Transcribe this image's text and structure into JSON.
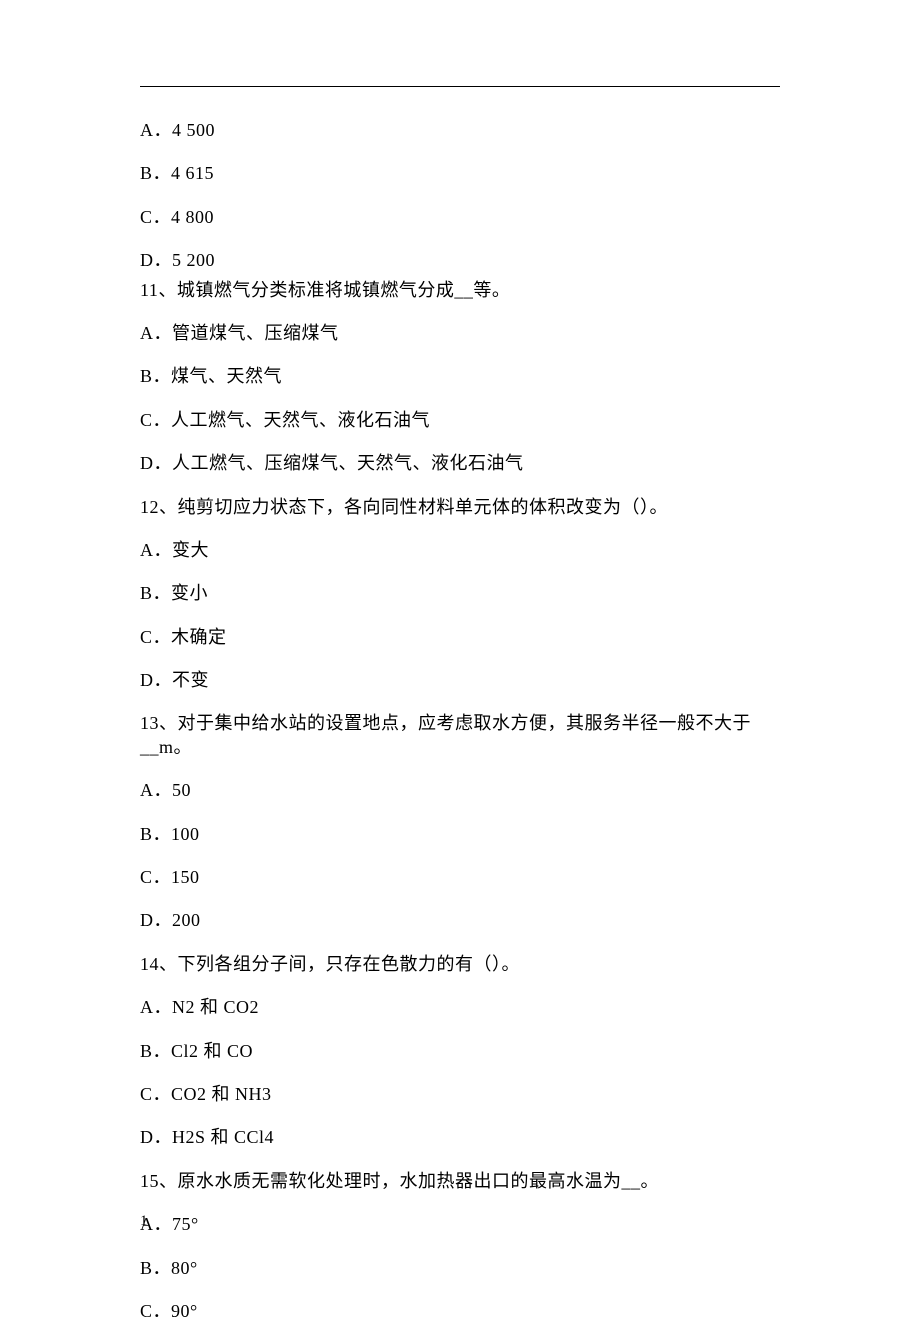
{
  "q10": {
    "a": "A．4 500",
    "b": "B．4 615",
    "c": "C．4 800",
    "d": "D．5 200"
  },
  "q11": {
    "stem": "11、城镇燃气分类标准将城镇燃气分成__等。",
    "a": "A．管道煤气、压缩煤气",
    "b": "B．煤气、天然气",
    "c": "C．人工燃气、天然气、液化石油气",
    "d": "D．人工燃气、压缩煤气、天然气、液化石油气"
  },
  "q12": {
    "stem": "12、纯剪切应力状态下，各向同性材料单元体的体积改变为（）。",
    "a": "A．变大",
    "b": "B．变小",
    "c": "C．木确定",
    "d": "D．不变"
  },
  "q13": {
    "stem": "13、对于集中给水站的设置地点，应考虑取水方便，其服务半径一般不大于__m。",
    "a": "A．50",
    "b": "B．100",
    "c": "C．150",
    "d": "D．200"
  },
  "q14": {
    "stem": "14、下列各组分子间，只存在色散力的有（）。",
    "a": "A．N2 和 CO2",
    "b": "B．Cl2 和 CO",
    "c": "C．CO2 和 NH3",
    "d": "D．H2S 和 CCl4"
  },
  "q15": {
    "stem": "15、原水水质无需软化处理时，水加热器出口的最高水温为__。",
    "a": "A．75°",
    "b": "B．80°",
    "c": "C．90°"
  },
  "footer": "1"
}
